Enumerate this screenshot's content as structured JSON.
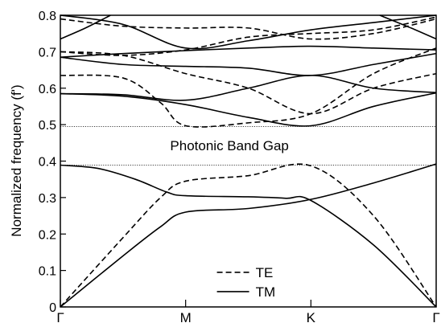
{
  "chart_data": {
    "type": "line",
    "title": "",
    "xlabel": "",
    "ylabel": "Normalized frequency  (f')",
    "ylim": [
      0,
      0.8
    ],
    "xlim": [
      0,
      3
    ],
    "x_ticks": [
      {
        "pos": 0,
        "label": "Γ"
      },
      {
        "pos": 1,
        "label": "M"
      },
      {
        "pos": 2,
        "label": "K"
      },
      {
        "pos": 3,
        "label": "Γ"
      }
    ],
    "y_ticks": [
      "0",
      "0.1",
      "0.2",
      "0.3",
      "0.4",
      "0.5",
      "0.6",
      "0.7",
      "0.8"
    ],
    "y_tick_values": [
      0,
      0.1,
      0.2,
      0.3,
      0.4,
      0.5,
      0.6,
      0.7,
      0.8
    ],
    "gap_lines": [
      0.389,
      0.495
    ],
    "annotation": {
      "text": "Photonic Band Gap",
      "x": 1.35,
      "y": 0.443
    },
    "legend": [
      {
        "label": "TE",
        "style": "dashed"
      },
      {
        "label": "TM",
        "style": "solid"
      }
    ],
    "series": [
      {
        "style": "solid",
        "points": [
          [
            0,
            0
          ],
          [
            0.5,
            0.14
          ],
          [
            0.8,
            0.22
          ],
          [
            1,
            0.26
          ],
          [
            1.5,
            0.27
          ],
          [
            2,
            0.295
          ],
          [
            2.5,
            0.34
          ],
          [
            3,
            0.392
          ]
        ]
      },
      {
        "style": "solid",
        "points": [
          [
            0,
            0.389
          ],
          [
            0.3,
            0.38
          ],
          [
            0.6,
            0.35
          ],
          [
            0.85,
            0.315
          ],
          [
            1,
            0.305
          ],
          [
            1.5,
            0.302
          ],
          [
            1.8,
            0.298
          ],
          [
            2,
            0.292
          ],
          [
            2.5,
            0.17
          ],
          [
            3,
            0
          ]
        ]
      },
      {
        "style": "solid",
        "points": [
          [
            0,
            0.585
          ],
          [
            0.5,
            0.578
          ],
          [
            1,
            0.555
          ],
          [
            1.5,
            0.52
          ],
          [
            2,
            0.497
          ],
          [
            2.5,
            0.55
          ],
          [
            3,
            0.587
          ]
        ]
      },
      {
        "style": "solid",
        "points": [
          [
            0,
            0.585
          ],
          [
            0.5,
            0.582
          ],
          [
            1,
            0.567
          ],
          [
            1.5,
            0.6
          ],
          [
            2,
            0.635
          ],
          [
            2.5,
            0.6
          ],
          [
            3,
            0.588
          ]
        ]
      },
      {
        "style": "solid",
        "points": [
          [
            0,
            0.685
          ],
          [
            0.5,
            0.665
          ],
          [
            1,
            0.66
          ],
          [
            1.5,
            0.655
          ],
          [
            2,
            0.635
          ],
          [
            2.5,
            0.665
          ],
          [
            3,
            0.695
          ]
        ]
      },
      {
        "style": "solid",
        "points": [
          [
            0,
            0.685
          ],
          [
            0.5,
            0.695
          ],
          [
            1,
            0.703
          ],
          [
            1.5,
            0.71
          ],
          [
            2,
            0.715
          ],
          [
            2.5,
            0.71
          ],
          [
            3,
            0.705
          ]
        ]
      },
      {
        "style": "solid",
        "points": [
          [
            0,
            0.735
          ],
          [
            0.2,
            0.765
          ],
          [
            0.4,
            0.8
          ]
        ]
      },
      {
        "style": "solid",
        "points": [
          [
            2.55,
            0.8
          ],
          [
            2.8,
            0.765
          ],
          [
            3,
            0.735
          ]
        ]
      },
      {
        "style": "solid",
        "points": [
          [
            0,
            0.8
          ],
          [
            0.5,
            0.775
          ],
          [
            1,
            0.71
          ],
          [
            1.5,
            0.73
          ],
          [
            2,
            0.76
          ],
          [
            2.5,
            0.78
          ],
          [
            3,
            0.8
          ]
        ]
      },
      {
        "style": "dashed",
        "points": [
          [
            0,
            0
          ],
          [
            0.5,
            0.19
          ],
          [
            0.8,
            0.3
          ],
          [
            1,
            0.345
          ],
          [
            1.5,
            0.36
          ],
          [
            2,
            0.387
          ],
          [
            2.5,
            0.25
          ],
          [
            3,
            0
          ]
        ]
      },
      {
        "style": "dashed",
        "points": [
          [
            0,
            0.635
          ],
          [
            0.5,
            0.628
          ],
          [
            0.8,
            0.56
          ],
          [
            1,
            0.497
          ],
          [
            1.5,
            0.505
          ],
          [
            2,
            0.53
          ],
          [
            2.5,
            0.64
          ],
          [
            3,
            0.71
          ]
        ]
      },
      {
        "style": "dashed",
        "points": [
          [
            0,
            0.7
          ],
          [
            0.5,
            0.69
          ],
          [
            1,
            0.64
          ],
          [
            1.5,
            0.6
          ],
          [
            2,
            0.53
          ],
          [
            2.5,
            0.6
          ],
          [
            3,
            0.64
          ]
        ]
      },
      {
        "style": "dashed",
        "points": [
          [
            0,
            0.7
          ],
          [
            0.5,
            0.69
          ],
          [
            1,
            0.705
          ],
          [
            1.5,
            0.74
          ],
          [
            2,
            0.75
          ],
          [
            2.5,
            0.76
          ],
          [
            3,
            0.795
          ]
        ]
      },
      {
        "style": "dashed",
        "points": [
          [
            0,
            0.79
          ],
          [
            0.5,
            0.77
          ],
          [
            1,
            0.765
          ],
          [
            1.5,
            0.765
          ],
          [
            2,
            0.735
          ],
          [
            2.5,
            0.75
          ],
          [
            3,
            0.79
          ]
        ]
      }
    ]
  }
}
